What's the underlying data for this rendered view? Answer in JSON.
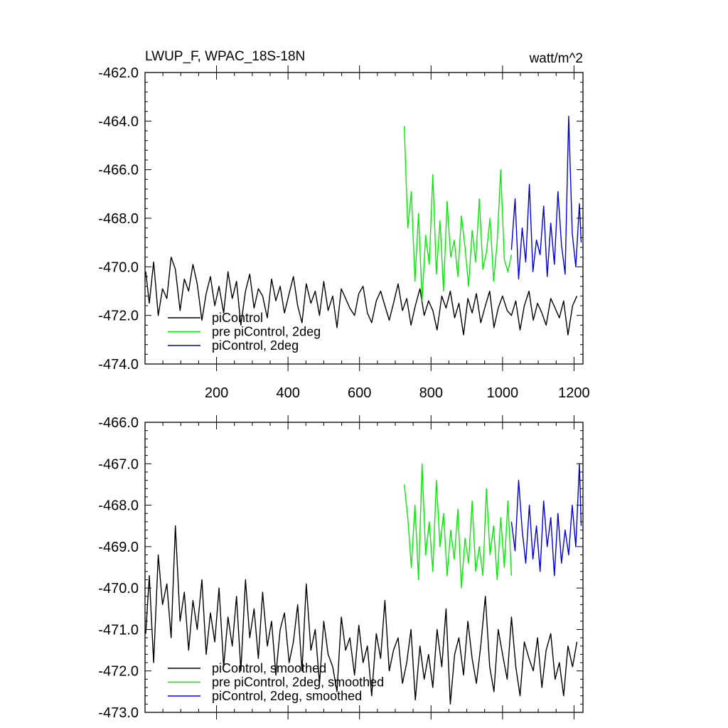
{
  "colors": {
    "black": "#000000",
    "green": "#00ee00",
    "blue": "#0000dd"
  },
  "chart_data": [
    {
      "type": "line",
      "title": "LWUP_F, WPAC_18S-18N",
      "units": "watt/m^2",
      "xlabel": "",
      "ylabel": "",
      "xlim": [
        0,
        1225
      ],
      "ylim": [
        -474,
        -462
      ],
      "xticks": [
        200,
        400,
        600,
        800,
        1000,
        1200
      ],
      "xtick_labels": [
        "200",
        "400",
        "600",
        "800",
        "1000",
        "1200"
      ],
      "yticks": [
        -462,
        -464,
        -466,
        -468,
        -470,
        -472,
        -474
      ],
      "ytick_labels": [
        "-462.0",
        "-464.0",
        "-466.0",
        "-468.0",
        "-470.0",
        "-472.0",
        "-474.0"
      ],
      "legend_position": "bottom-left",
      "series": [
        {
          "name": "piControl",
          "color": "#000000",
          "x": [
            2,
            12,
            24,
            37,
            49,
            61,
            73,
            85,
            98,
            110,
            122,
            134,
            146,
            159,
            171,
            183,
            195,
            207,
            220,
            232,
            244,
            256,
            268,
            281,
            293,
            305,
            317,
            329,
            342,
            354,
            366,
            378,
            390,
            403,
            415,
            427,
            439,
            451,
            464,
            476,
            488,
            500,
            512,
            525,
            537,
            549,
            561,
            573,
            586,
            598,
            610,
            622,
            634,
            647,
            659,
            671,
            683,
            695,
            708,
            720,
            732,
            744,
            756,
            769,
            781,
            793,
            805,
            817,
            830,
            842,
            854,
            866,
            878,
            891,
            903,
            915,
            927,
            939,
            952,
            964,
            976,
            988,
            1000,
            1013,
            1025,
            1037,
            1049,
            1061,
            1074,
            1086,
            1098,
            1110,
            1122,
            1135,
            1147,
            1159,
            1171,
            1183,
            1196,
            1208
          ],
          "values": [
            -470.2,
            -471.5,
            -469.8,
            -472.0,
            -470.9,
            -471.3,
            -469.6,
            -470.1,
            -471.8,
            -470.5,
            -471.0,
            -469.9,
            -470.7,
            -472.2,
            -471.1,
            -470.4,
            -471.6,
            -470.8,
            -471.9,
            -470.2,
            -471.3,
            -470.6,
            -472.4,
            -471.0,
            -470.3,
            -471.7,
            -470.9,
            -471.2,
            -472.1,
            -470.5,
            -471.4,
            -470.8,
            -471.9,
            -471.1,
            -470.4,
            -471.6,
            -472.3,
            -470.7,
            -471.5,
            -471.0,
            -472.0,
            -470.6,
            -471.8,
            -471.2,
            -472.5,
            -470.9,
            -471.3,
            -471.7,
            -472.0,
            -471.1,
            -470.8,
            -471.9,
            -472.3,
            -471.4,
            -471.0,
            -471.6,
            -472.2,
            -471.5,
            -470.7,
            -471.8,
            -471.3,
            -472.4,
            -471.6,
            -470.9,
            -472.0,
            -471.4,
            -471.8,
            -472.6,
            -471.2,
            -471.7,
            -471.0,
            -472.1,
            -471.5,
            -472.8,
            -471.3,
            -471.9,
            -471.1,
            -472.3,
            -471.6,
            -471.0,
            -472.5,
            -471.7,
            -471.2,
            -471.8,
            -472.0,
            -471.4,
            -472.6,
            -471.6,
            -471.0,
            -472.2,
            -471.5,
            -471.9,
            -472.4,
            -471.3,
            -471.7,
            -472.1,
            -471.4,
            -472.8,
            -471.6,
            -471.2
          ]
        },
        {
          "name": "pre piControl, 2deg",
          "color": "#00ee00",
          "x": [
            725,
            735,
            745,
            755,
            765,
            775,
            785,
            795,
            805,
            815,
            825,
            835,
            845,
            855,
            865,
            875,
            885,
            895,
            905,
            915,
            925,
            935,
            945,
            955,
            965,
            975,
            985,
            995,
            1005,
            1015,
            1025
          ],
          "values": [
            -464.2,
            -468.4,
            -466.9,
            -470.6,
            -467.8,
            -471.4,
            -468.7,
            -469.9,
            -466.2,
            -470.3,
            -468.1,
            -471.0,
            -467.3,
            -469.6,
            -468.9,
            -470.4,
            -467.9,
            -469.2,
            -470.8,
            -468.5,
            -469.8,
            -467.2,
            -470.1,
            -469.4,
            -468.0,
            -470.6,
            -469.0,
            -466.0,
            -469.7,
            -470.2,
            -469.5
          ]
        },
        {
          "name": "piControl, 2deg",
          "color": "#0000dd",
          "x": [
            1025,
            1035,
            1045,
            1055,
            1065,
            1075,
            1085,
            1095,
            1105,
            1115,
            1125,
            1135,
            1145,
            1155,
            1165,
            1175,
            1185,
            1195,
            1205,
            1215,
            1220
          ],
          "values": [
            -469.3,
            -467.2,
            -470.5,
            -468.4,
            -469.8,
            -466.6,
            -470.2,
            -468.9,
            -469.5,
            -467.5,
            -470.4,
            -468.2,
            -469.9,
            -466.9,
            -469.1,
            -470.3,
            -463.8,
            -468.6,
            -470.0,
            -467.4,
            -469.0
          ]
        }
      ]
    },
    {
      "type": "line",
      "title": "",
      "xlabel": "",
      "ylabel": "",
      "xlim": [
        0,
        1225
      ],
      "ylim": [
        -473,
        -466
      ],
      "xticks": [
        200,
        400,
        600,
        800,
        1000,
        1200
      ],
      "yticks": [
        -466,
        -467,
        -468,
        -469,
        -470,
        -471,
        -472,
        -473
      ],
      "ytick_labels": [
        "-466.0",
        "-467.0",
        "-468.0",
        "-469.0",
        "-470.0",
        "-471.0",
        "-472.0",
        "-473.0"
      ],
      "legend_position": "bottom-left",
      "series": [
        {
          "name": "piControl, smoothed",
          "color": "#000000",
          "x": [
            2,
            12,
            24,
            37,
            49,
            61,
            73,
            85,
            98,
            110,
            122,
            134,
            146,
            159,
            171,
            183,
            195,
            207,
            220,
            232,
            244,
            256,
            268,
            281,
            293,
            305,
            317,
            329,
            342,
            354,
            366,
            378,
            390,
            403,
            415,
            427,
            439,
            451,
            464,
            476,
            488,
            500,
            512,
            525,
            537,
            549,
            561,
            573,
            586,
            598,
            610,
            622,
            634,
            647,
            659,
            671,
            683,
            695,
            708,
            720,
            732,
            744,
            756,
            769,
            781,
            793,
            805,
            817,
            830,
            842,
            854,
            866,
            878,
            891,
            903,
            915,
            927,
            939,
            952,
            964,
            976,
            988,
            1000,
            1013,
            1025,
            1037,
            1049,
            1061,
            1074,
            1086,
            1098,
            1110,
            1122,
            1135,
            1147,
            1159,
            1171,
            1183,
            1196,
            1208
          ],
          "values": [
            -471.1,
            -469.7,
            -471.8,
            -469.2,
            -470.4,
            -469.9,
            -471.2,
            -468.5,
            -470.8,
            -470.1,
            -471.5,
            -470.3,
            -471.0,
            -469.8,
            -471.6,
            -470.6,
            -471.3,
            -470.0,
            -471.9,
            -470.7,
            -471.4,
            -470.2,
            -472.0,
            -469.8,
            -471.2,
            -470.5,
            -471.7,
            -470.1,
            -471.4,
            -470.8,
            -472.1,
            -471.0,
            -470.6,
            -471.8,
            -471.3,
            -470.4,
            -472.0,
            -469.9,
            -471.5,
            -471.0,
            -472.3,
            -470.8,
            -471.6,
            -471.9,
            -472.5,
            -470.7,
            -471.5,
            -471.2,
            -472.1,
            -470.9,
            -471.8,
            -471.4,
            -472.6,
            -471.1,
            -471.7,
            -470.3,
            -472.0,
            -471.5,
            -471.2,
            -472.3,
            -471.8,
            -471.0,
            -472.7,
            -471.4,
            -472.2,
            -471.6,
            -472.4,
            -471.0,
            -471.9,
            -470.5,
            -472.8,
            -471.6,
            -471.2,
            -472.1,
            -470.8,
            -471.7,
            -472.3,
            -471.4,
            -470.2,
            -471.9,
            -472.5,
            -471.0,
            -471.6,
            -472.2,
            -470.7,
            -471.9,
            -472.6,
            -471.3,
            -471.7,
            -472.0,
            -471.2,
            -472.4,
            -471.5,
            -471.1,
            -472.2,
            -471.8,
            -472.6,
            -471.4,
            -471.9,
            -471.3
          ]
        },
        {
          "name": "pre piControl, 2deg, smoothed",
          "color": "#00ee00",
          "x": [
            725,
            735,
            745,
            755,
            765,
            775,
            785,
            795,
            805,
            815,
            825,
            835,
            845,
            855,
            865,
            875,
            885,
            895,
            905,
            915,
            925,
            935,
            945,
            955,
            965,
            975,
            985,
            995,
            1005,
            1015,
            1025
          ],
          "values": [
            -467.5,
            -468.3,
            -469.5,
            -468.0,
            -469.8,
            -467.0,
            -469.2,
            -468.4,
            -469.6,
            -467.4,
            -469.0,
            -468.2,
            -469.7,
            -468.6,
            -469.3,
            -468.1,
            -470.0,
            -468.8,
            -469.4,
            -467.9,
            -469.6,
            -469.0,
            -469.7,
            -467.6,
            -469.2,
            -468.5,
            -469.8,
            -468.3,
            -469.5,
            -467.9,
            -469.7
          ]
        },
        {
          "name": "piControl, 2deg, smoothed",
          "color": "#0000dd",
          "x": [
            1025,
            1035,
            1045,
            1055,
            1065,
            1075,
            1085,
            1095,
            1105,
            1115,
            1125,
            1135,
            1145,
            1155,
            1165,
            1175,
            1185,
            1195,
            1205,
            1215,
            1220
          ],
          "values": [
            -468.4,
            -469.1,
            -467.4,
            -468.6,
            -469.4,
            -468.0,
            -469.3,
            -468.5,
            -469.6,
            -467.9,
            -469.0,
            -468.3,
            -469.7,
            -468.2,
            -469.4,
            -468.6,
            -469.2,
            -468.0,
            -469.0,
            -467.0,
            -468.5
          ]
        }
      ]
    }
  ]
}
